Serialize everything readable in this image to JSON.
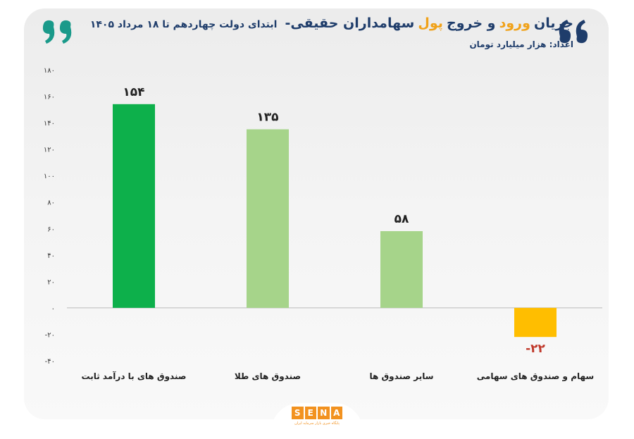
{
  "title": {
    "part1": "جریان",
    "accent1": "ورود",
    "part2": "و خروج",
    "accent2": "پول",
    "part3": "سهامداران حقیقی-",
    "subtitle": "ابتدای دولت چهاردهم تا ۱۸ مرداد ۱۴۰۵"
  },
  "unit_label": "اعداد: هزار میلیارد تومان",
  "logo": {
    "letters": [
      "S",
      "E",
      "N",
      "A"
    ],
    "tagline": "پایگاه خبری بازار سرمایه ایران"
  },
  "colors": {
    "dark_green": "#0db04b",
    "light_green": "#a6d48a",
    "yellow": "#ffbe00",
    "navy": "#1f3d6b",
    "quote_teal": "#1a9a8a",
    "quote_navy": "#1f3d6b",
    "negative_label": "#c0392b"
  },
  "chart_data": {
    "type": "bar",
    "categories": [
      "صندوق های با درآمد ثابت",
      "صندوق های طلا",
      "سایر صندوق ها",
      "سهام و صندوق های سهامی"
    ],
    "values": [
      154,
      135,
      58,
      -22
    ],
    "value_labels": [
      "۱۵۴",
      "۱۳۵",
      "۵۸",
      "-۲۲"
    ],
    "bar_colors": [
      "#0db04b",
      "#a6d48a",
      "#a6d48a",
      "#ffbe00"
    ],
    "ylim": [
      -40,
      180
    ],
    "yticks": [
      180,
      160,
      140,
      120,
      100,
      80,
      60,
      40,
      20,
      0,
      -20,
      -40
    ],
    "ytick_labels": [
      "۱۸۰",
      "۱۶۰",
      "۱۴۰",
      "۱۲۰",
      "۱۰۰",
      "۸۰",
      "۶۰",
      "۴۰",
      "۲۰",
      "۰",
      "-۲۰",
      "-۴۰"
    ],
    "grid": false
  }
}
